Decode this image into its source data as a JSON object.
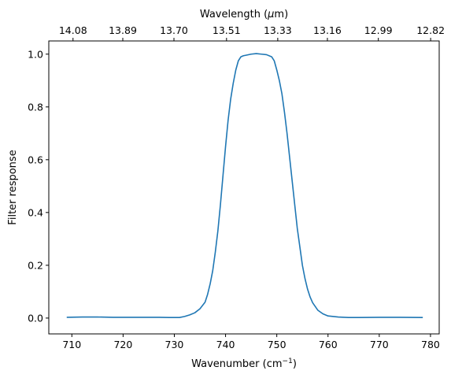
{
  "chart_data": {
    "type": "line",
    "xlabel": "Wavenumber (cm",
    "xlabel_sup": "−1",
    "xlabel_end": ")",
    "ylabel": "Filter response",
    "top_axis_label_prefix": "Wavelength (",
    "top_axis_label_mu": "μ",
    "top_axis_label_suffix": "m)",
    "xlim": [
      705.5,
      781.7
    ],
    "ylim": [
      -0.06,
      1.05
    ],
    "grid": false,
    "color": "#1f77b4",
    "x_ticks": [
      "710",
      "720",
      "730",
      "740",
      "750",
      "760",
      "770",
      "780"
    ],
    "x_tick_values": [
      710,
      720,
      730,
      740,
      750,
      760,
      770,
      780
    ],
    "y_ticks": [
      "0.0",
      "0.2",
      "0.4",
      "0.6",
      "0.8",
      "1.0"
    ],
    "y_tick_values": [
      0.0,
      0.2,
      0.4,
      0.6,
      0.8,
      1.0
    ],
    "top_ticks": [
      "14.08",
      "13.89",
      "13.70",
      "13.51",
      "13.33",
      "13.16",
      "12.99",
      "12.82"
    ],
    "top_tick_values": [
      14.08,
      13.89,
      13.7,
      13.51,
      13.33,
      13.16,
      12.99,
      12.82
    ],
    "series": [
      {
        "x": [
          709,
          712,
          715,
          718,
          721,
          724,
          727,
          729,
          731,
          732,
          733,
          734,
          735,
          736,
          736.5,
          737,
          737.5,
          738,
          738.5,
          739,
          739.5,
          740,
          740.5,
          741,
          741.5,
          742,
          742.5,
          743,
          743.5,
          744,
          745,
          746,
          747,
          748,
          749,
          749.5,
          750,
          750.5,
          751,
          751.5,
          752,
          752.5,
          753,
          753.5,
          754,
          754.5,
          755,
          755.5,
          756,
          756.5,
          757,
          758,
          759,
          760,
          762,
          764,
          766,
          770,
          774,
          778.5
        ],
        "y": [
          0.003,
          0.004,
          0.004,
          0.003,
          0.003,
          0.003,
          0.003,
          0.002,
          0.002,
          0.006,
          0.012,
          0.02,
          0.035,
          0.06,
          0.09,
          0.13,
          0.18,
          0.25,
          0.33,
          0.43,
          0.54,
          0.65,
          0.75,
          0.83,
          0.89,
          0.94,
          0.975,
          0.99,
          0.994,
          0.996,
          1.0,
          1.002,
          1.0,
          0.998,
          0.99,
          0.975,
          0.94,
          0.9,
          0.85,
          0.78,
          0.7,
          0.61,
          0.52,
          0.43,
          0.34,
          0.27,
          0.2,
          0.15,
          0.11,
          0.08,
          0.058,
          0.03,
          0.016,
          0.008,
          0.004,
          0.002,
          0.002,
          0.003,
          0.003,
          0.002
        ]
      }
    ]
  }
}
